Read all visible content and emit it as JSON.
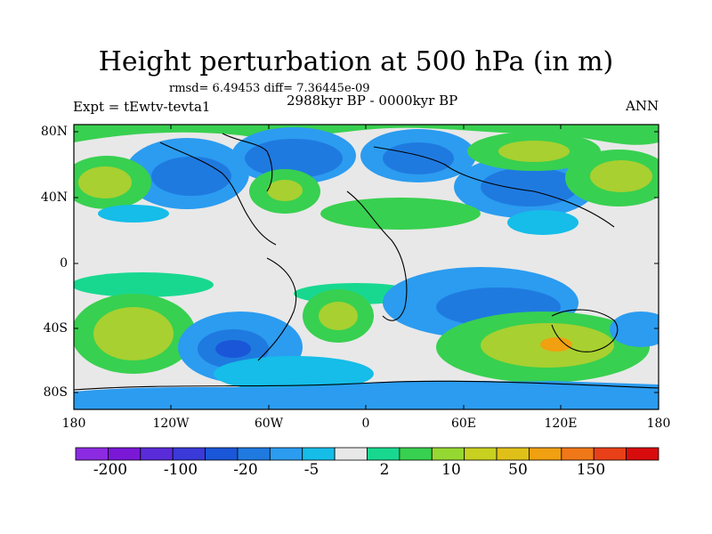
{
  "title": "Height perturbation at 500 hPa (in m)",
  "stats": "rmsd= 6.49453 diff= 7.36445e-09",
  "experiment": "Expt = tEwtv-tevta1",
  "period": "2988kyr BP - 0000kyr BP",
  "season": "ANN",
  "y_axis_labels": [
    "80N",
    "40N",
    "0",
    "40S",
    "80S"
  ],
  "x_axis_labels": [
    "180",
    "120W",
    "60W",
    "0",
    "60E",
    "120E",
    "180"
  ],
  "colorbar": {
    "colors": [
      "#8c2be2",
      "#7a18d6",
      "#5a2bd8",
      "#3a3ad8",
      "#1a56d8",
      "#1f7ae0",
      "#2b9cf0",
      "#15bde8",
      "#e8e8e8",
      "#18d890",
      "#38d050",
      "#96d832",
      "#c8d020",
      "#e0c018",
      "#f0a010",
      "#f07818",
      "#e84018",
      "#d80c0c"
    ],
    "labels": [
      "-200",
      "-100",
      "-20",
      "-5",
      "2",
      "10",
      "50",
      "150"
    ]
  },
  "map": {
    "background_color": "#e8e8e8",
    "green": "#38d050",
    "yellow_green": "#a8d030",
    "cyan": "#15bde8",
    "sky_blue": "#2b9cf0",
    "blue": "#1f7ae0",
    "deep_blue": "#1a56d8",
    "mint": "#18d890",
    "orange": "#f0a010"
  }
}
